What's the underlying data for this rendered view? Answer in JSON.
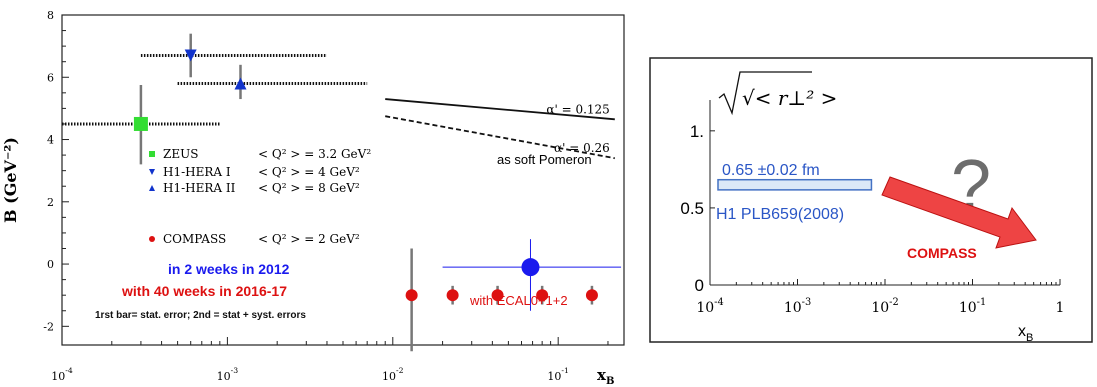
{
  "chart_data": [
    {
      "type": "scatter",
      "xscale": "log",
      "xlim": [
        0.0001,
        0.25
      ],
      "ylim": [
        -2.6,
        8
      ],
      "ylabel": "B (GeV⁻²)",
      "xlabel": "x",
      "xlabel_sub": "B",
      "x_ticks": [
        {
          "value": 0.0001,
          "base": "10",
          "exp": "-4"
        },
        {
          "value": 0.001,
          "base": "10",
          "exp": "-3"
        },
        {
          "value": 0.01,
          "base": "10",
          "exp": "-2"
        },
        {
          "value": 0.1,
          "base": "10",
          "exp": "-1"
        }
      ],
      "y_ticks": [
        -2,
        0,
        2,
        4,
        6,
        8
      ],
      "series": [
        {
          "name": "ZEUS",
          "color": "#33dd33",
          "marker": "square",
          "points": [
            {
              "x": 0.0003,
              "y": 4.5,
              "xlo": 0.0001,
              "xhi": 0.0009,
              "ylo": 3.2,
              "yhi": 5.75
            }
          ]
        },
        {
          "name": "H1-HERA I",
          "color": "#1133cc",
          "marker": "triangle-down",
          "points": [
            {
              "x": 0.0006,
              "y": 6.7,
              "xlo": 0.0003,
              "xhi": 0.004,
              "ylo": 6.0,
              "yhi": 7.4
            }
          ]
        },
        {
          "name": "H1-HERA II",
          "color": "#1133cc",
          "marker": "triangle-up",
          "points": [
            {
              "x": 0.0012,
              "y": 5.8,
              "xlo": 0.0005,
              "xhi": 0.007,
              "ylo": 5.3,
              "yhi": 6.4
            }
          ]
        },
        {
          "name": "COMPASS",
          "color": "#dd1111",
          "marker": "circle",
          "points": [
            {
              "x": 0.013,
              "y": -1.0,
              "ylo": -2.8,
              "yhi": 0.5
            },
            {
              "x": 0.023,
              "y": -1.0,
              "ylo": -1.3,
              "yhi": -0.7
            },
            {
              "x": 0.043,
              "y": -1.0,
              "ylo": -1.3,
              "yhi": -0.7
            },
            {
              "x": 0.08,
              "y": -1.0,
              "ylo": -1.3,
              "yhi": -0.7
            },
            {
              "x": 0.16,
              "y": -1.0,
              "ylo": -1.3,
              "yhi": -0.7
            }
          ]
        },
        {
          "name": "COMPASS 2012",
          "color": "#1a1aee",
          "marker": "circle",
          "points": [
            {
              "x": 0.068,
              "y": -0.1,
              "xlo": 0.02,
              "xhi": 0.24,
              "ylo": -1.5,
              "yhi": 0.8
            }
          ]
        }
      ],
      "curves": [
        {
          "label": "α' = 0.125",
          "style": "solid",
          "points": [
            {
              "x": 0.009,
              "y": 5.3
            },
            {
              "x": 0.22,
              "y": 4.65
            }
          ]
        },
        {
          "label": "α' = 0.26",
          "style": "dashed",
          "points": [
            {
              "x": 0.009,
              "y": 4.75
            },
            {
              "x": 0.22,
              "y": 3.4
            }
          ]
        }
      ],
      "pomeron_note": "as soft Pomeron",
      "legend": [
        {
          "name": "ZEUS",
          "q2": "< Q² > = 3.2 GeV²",
          "color": "#33dd33",
          "marker": "square"
        },
        {
          "name": "H1-HERA I",
          "q2": "< Q² > = 4 GeV²",
          "color": "#1133cc",
          "marker": "triangle-down"
        },
        {
          "name": "H1-HERA II",
          "q2": "< Q² > = 8 GeV²",
          "color": "#1133cc",
          "marker": "triangle-up"
        },
        {
          "name": "COMPASS",
          "q2": "< Q² > = 2 GeV²",
          "color": "#dd1111",
          "marker": "circle"
        }
      ],
      "notes": {
        "weeks_2012": "in 2 weeks  in 2012",
        "weeks_2016": "with  40  weeks  in  2016-17",
        "errors": "1rst bar= stat. error; 2nd = stat + syst. errors",
        "ecal": "with ECAL0+1+2"
      }
    },
    {
      "type": "scatter",
      "xscale": "log",
      "xlim": [
        0.0001,
        1
      ],
      "ylim": [
        0,
        1.2
      ],
      "title": "√< r⊥² >",
      "xlabel": "x",
      "xlabel_sub": "B",
      "x_ticks": [
        {
          "value": 0.0001,
          "base": "10",
          "exp": "-4"
        },
        {
          "value": 0.001,
          "base": "10",
          "exp": "-3"
        },
        {
          "value": 0.01,
          "base": "10",
          "exp": "-2"
        },
        {
          "value": 0.1,
          "base": "10",
          "exp": "-1"
        },
        {
          "value": 1,
          "base": "1",
          "exp": ""
        }
      ],
      "y_ticks": [
        {
          "value": 0,
          "label": "0"
        },
        {
          "value": 0.5,
          "label": "0.5"
        },
        {
          "value": 1,
          "label": "1."
        }
      ],
      "band": {
        "xlo": 0.0001,
        "xhi": 0.007,
        "ylo": 0.63,
        "yhi": 0.67,
        "color": "#4472c4",
        "fill": "#dce8f7"
      },
      "band_value": "0.65 ±0.02 fm",
      "band_ref": "H1   PLB659(2008)",
      "question_mark": "?",
      "arrow_label": "COMPASS",
      "arrow_color": "#dd1111"
    }
  ]
}
